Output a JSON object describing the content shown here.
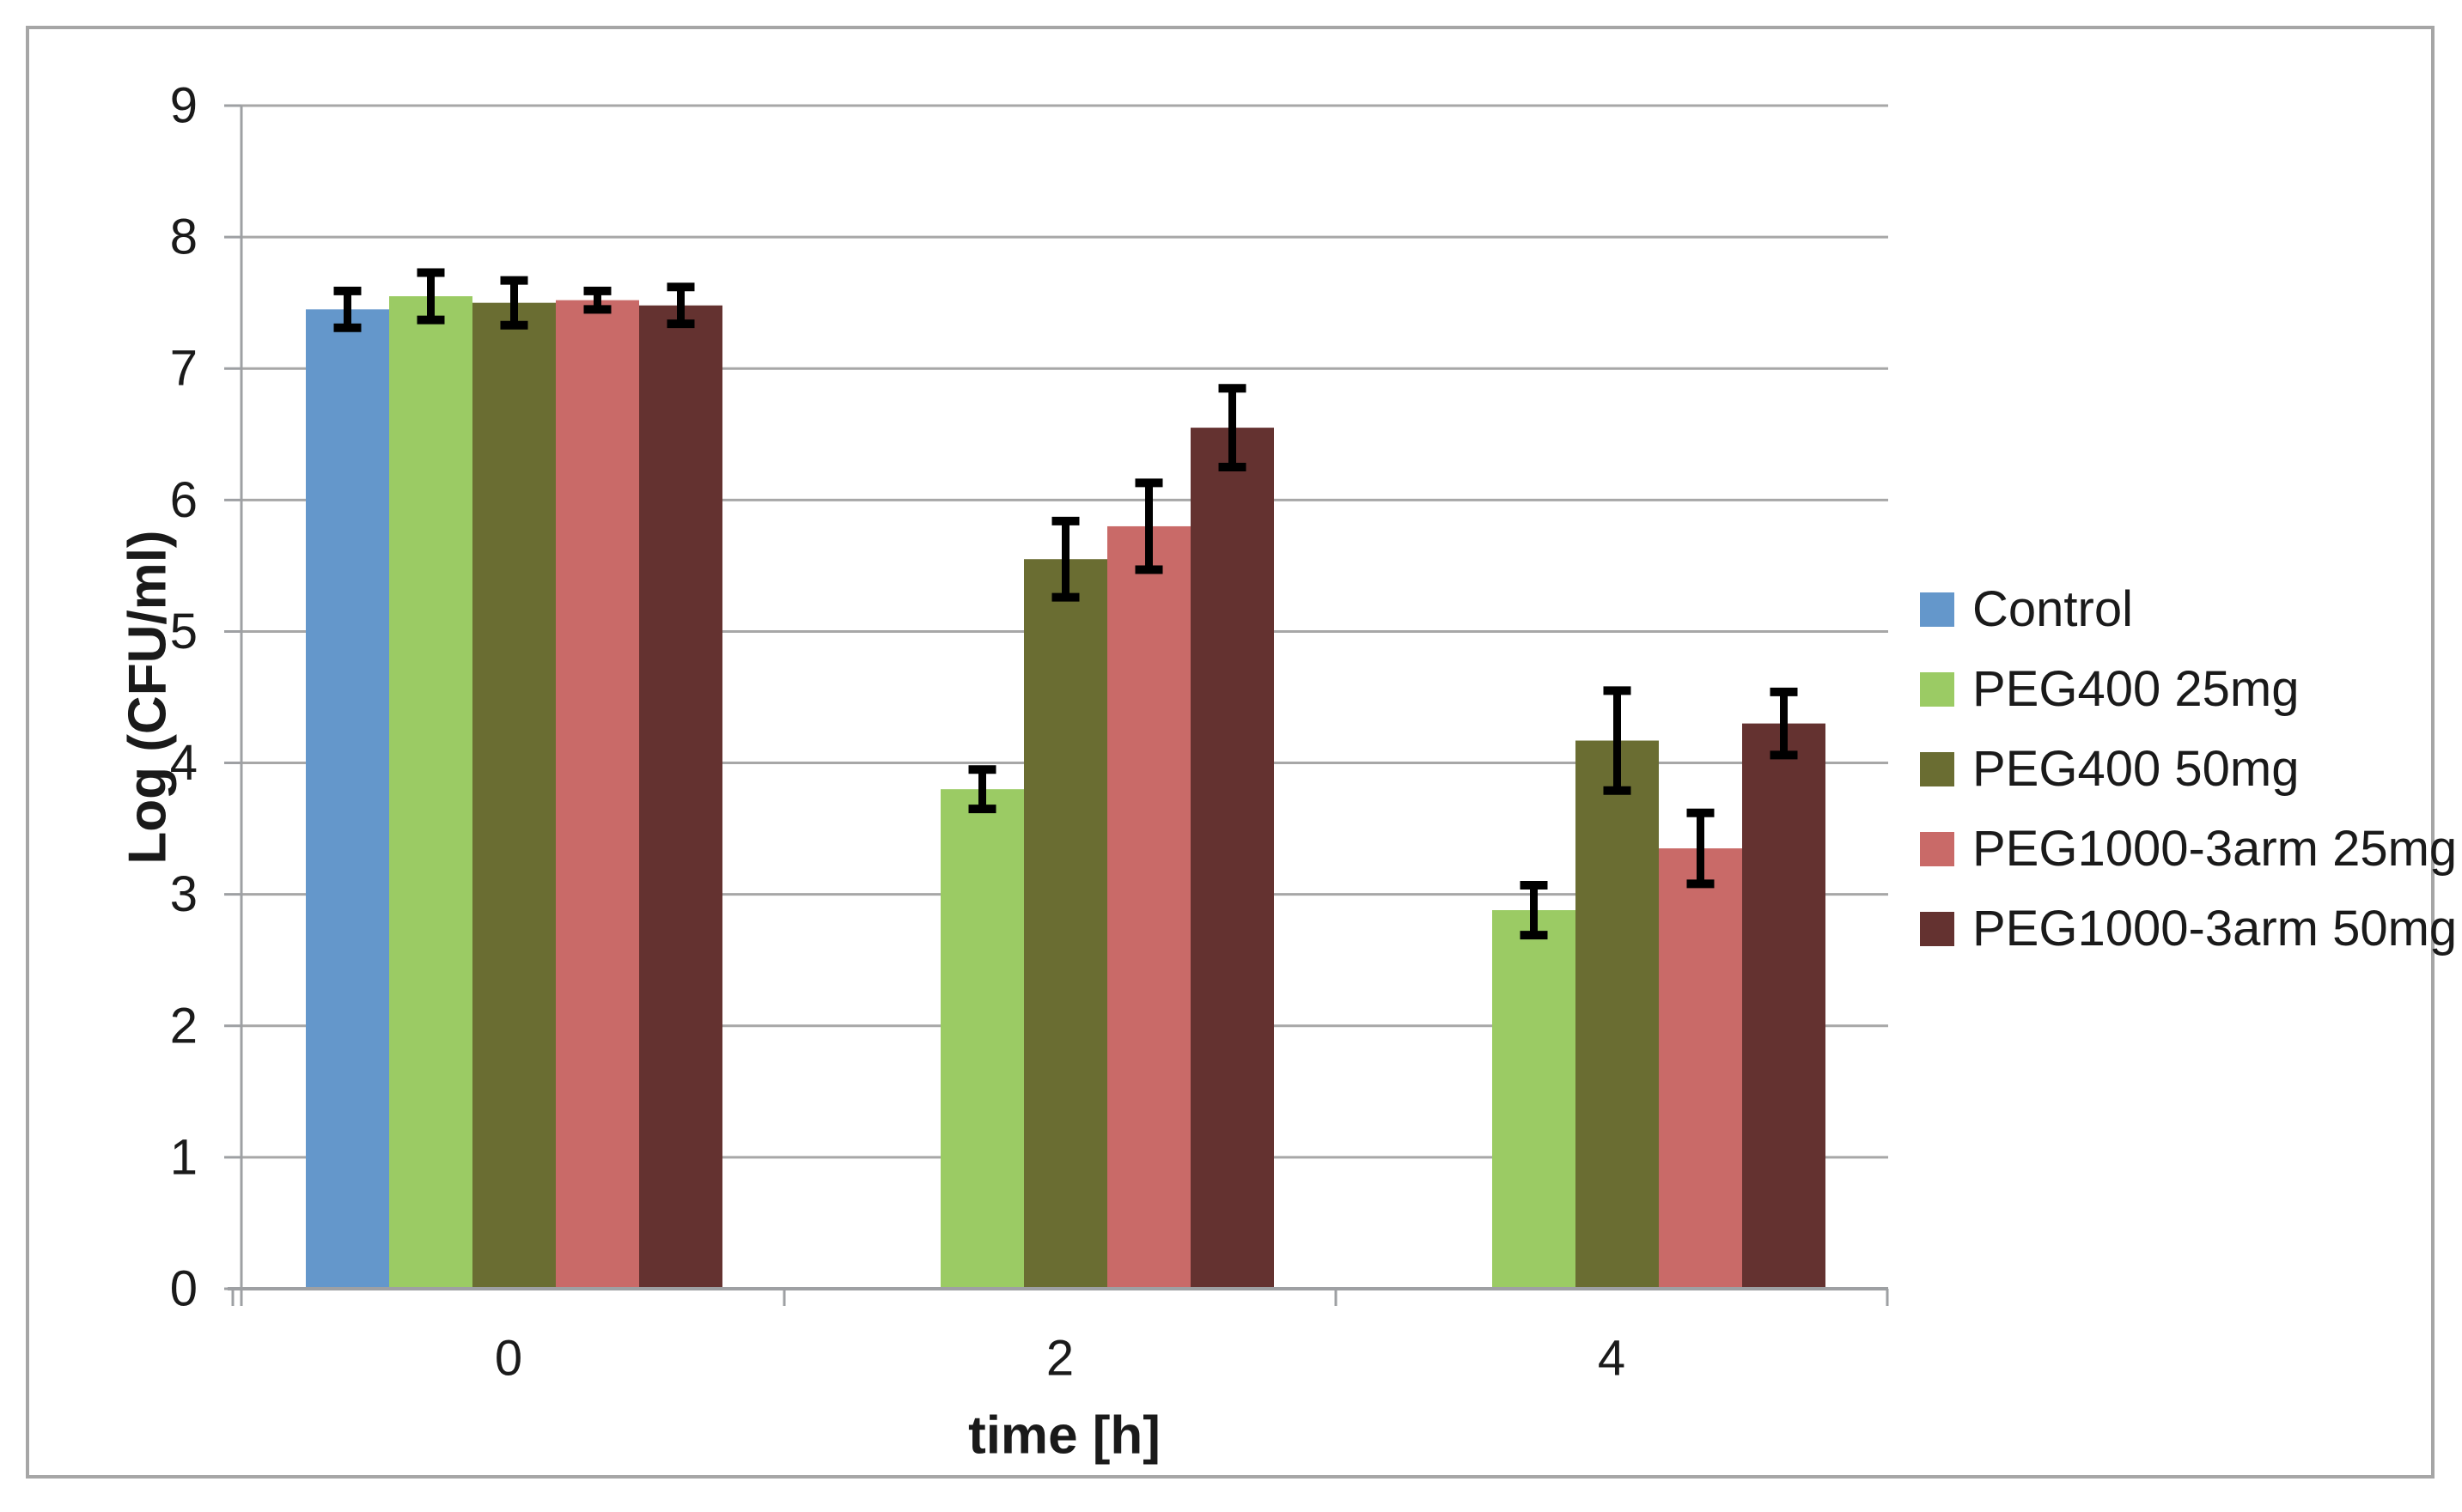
{
  "chart_data": {
    "type": "bar",
    "title": "",
    "xlabel": "time [h]",
    "ylabel": "Log (CFU/ml)",
    "categories": [
      "0",
      "2",
      "4"
    ],
    "ylim": [
      0,
      9
    ],
    "ytick_step": 1,
    "grid": true,
    "legend_position": "right",
    "series": [
      {
        "name": "Control",
        "color": "#6497cb",
        "values": [
          7.45,
          0,
          0
        ],
        "errors": [
          0.14,
          0,
          0
        ]
      },
      {
        "name": "PEG400 25mg",
        "color": "#9bcb64",
        "values": [
          7.55,
          3.8,
          2.88
        ],
        "errors": [
          0.18,
          0.15,
          0.19
        ]
      },
      {
        "name": "PEG400 50mg",
        "color": "#6a6d32",
        "values": [
          7.5,
          5.55,
          4.17
        ],
        "errors": [
          0.17,
          0.29,
          0.38
        ]
      },
      {
        "name": "PEG1000-3arm 25mg",
        "color": "#c96a68",
        "values": [
          7.52,
          5.8,
          3.35
        ],
        "errors": [
          0.07,
          0.33,
          0.27
        ]
      },
      {
        "name": "PEG1000-3arm 50mg",
        "color": "#643230",
        "values": [
          7.48,
          6.55,
          4.3
        ],
        "errors": [
          0.14,
          0.3,
          0.24
        ]
      }
    ],
    "colors": {
      "error_bar": "#000000",
      "gridline": "#a7a7a7",
      "axis": "#9ea0a3",
      "outer_border": "#a6a6a6",
      "background": "#ffffff",
      "text": "#1a1a1a"
    }
  }
}
